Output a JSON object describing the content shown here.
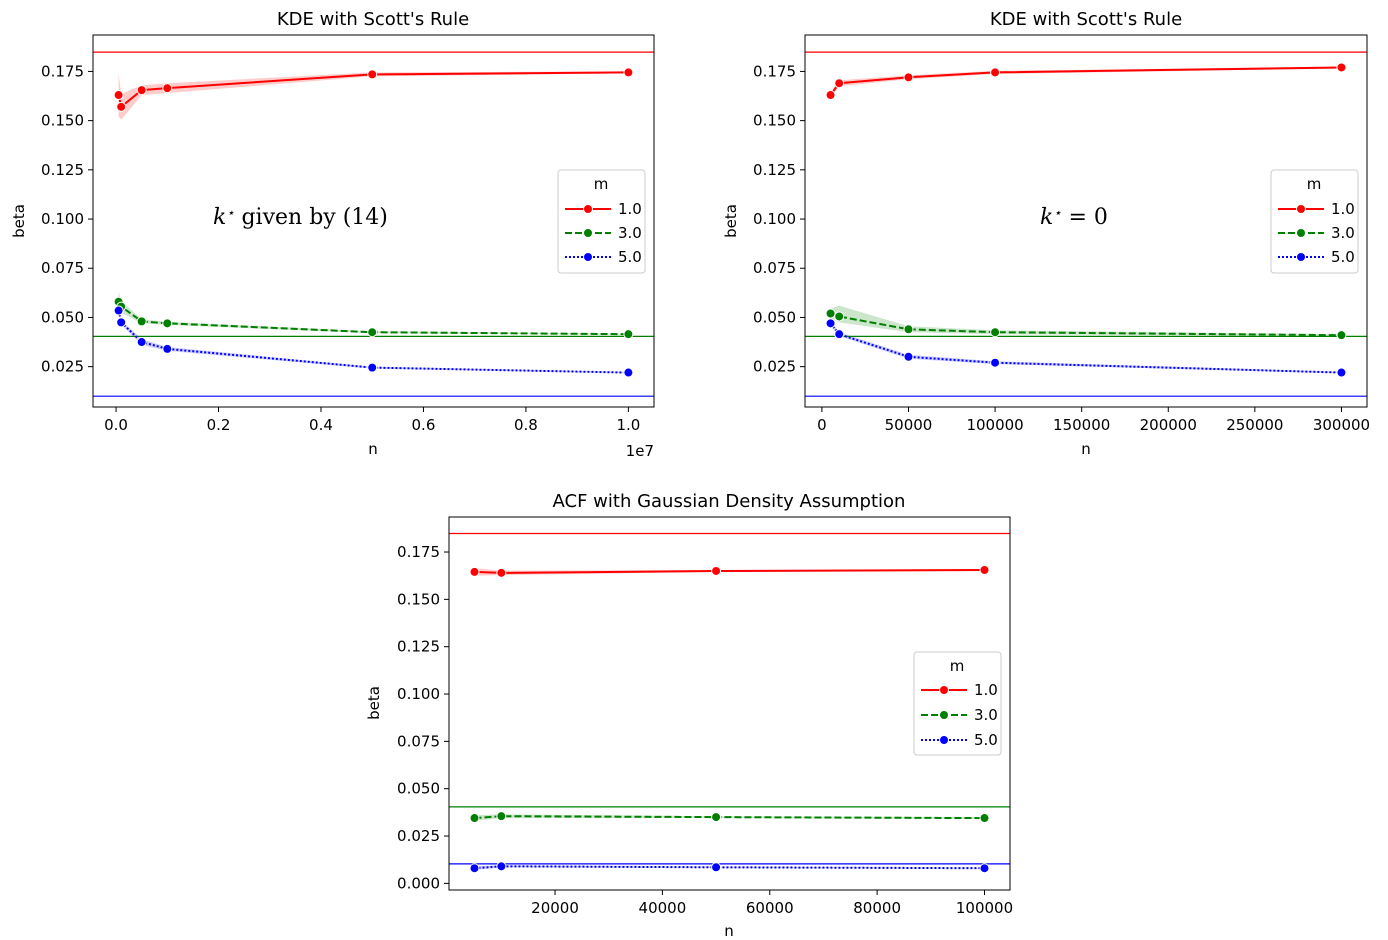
{
  "chart_data": [
    {
      "type": "line",
      "title": "KDE with Scott's Rule",
      "xlabel": "n",
      "ylabel": "beta",
      "x_offset_text": "1e7",
      "x_scale_factor": 10000000,
      "xlim": [
        -450000,
        10500000
      ],
      "ylim": [
        0.0045,
        0.1935
      ],
      "xticks": [
        0,
        2000000,
        4000000,
        6000000,
        8000000,
        10000000
      ],
      "xtick_labels": [
        "0.0",
        "0.2",
        "0.4",
        "0.6",
        "0.8",
        "1.0"
      ],
      "yticks": [
        0.025,
        0.05,
        0.075,
        0.1,
        0.125,
        0.15,
        0.175
      ],
      "ytick_labels": [
        "0.025",
        "0.050",
        "0.075",
        "0.100",
        "0.125",
        "0.150",
        "0.175"
      ],
      "annotation": "k* given by (14)",
      "legend": {
        "title": "m",
        "position": "center-right"
      },
      "hlines": [
        {
          "y": 0.1848,
          "color": "#ff0000"
        },
        {
          "y": 0.0404,
          "color": "#008000"
        },
        {
          "y": 0.01,
          "color": "#0000ff"
        }
      ],
      "series": [
        {
          "name": "1.0",
          "color": "#ff0000",
          "dash": "solid",
          "x": [
            50000,
            100000,
            500000,
            1000000,
            5000000,
            10000000
          ],
          "y": [
            0.163,
            0.157,
            0.1655,
            0.1665,
            0.1735,
            0.1745
          ],
          "ci_low": [
            0.152,
            0.1505,
            0.163,
            0.164,
            0.1725,
            0.174
          ],
          "ci_high": [
            0.174,
            0.1635,
            0.168,
            0.169,
            0.1745,
            0.175
          ]
        },
        {
          "name": "3.0",
          "color": "#008000",
          "dash": "dashed",
          "x": [
            50000,
            100000,
            500000,
            1000000,
            5000000,
            10000000
          ],
          "y": [
            0.058,
            0.0555,
            0.048,
            0.047,
            0.0425,
            0.0415
          ],
          "ci_low": [
            0.053,
            0.0525,
            0.047,
            0.0462,
            0.042,
            0.0412
          ],
          "ci_high": [
            0.063,
            0.0585,
            0.049,
            0.0478,
            0.043,
            0.0418
          ]
        },
        {
          "name": "5.0",
          "color": "#0000ff",
          "dash": "dotted",
          "x": [
            50000,
            100000,
            500000,
            1000000,
            5000000,
            10000000
          ],
          "y": [
            0.0535,
            0.0475,
            0.0375,
            0.034,
            0.0245,
            0.022
          ],
          "ci_low": [
            0.052,
            0.0465,
            0.036,
            0.033,
            0.024,
            0.0217
          ],
          "ci_high": [
            0.055,
            0.0485,
            0.039,
            0.035,
            0.025,
            0.0223
          ]
        }
      ]
    },
    {
      "type": "line",
      "title": "KDE with Scott's Rule",
      "xlabel": "n",
      "ylabel": "beta",
      "xlim": [
        -9750,
        314750
      ],
      "ylim": [
        0.0045,
        0.1935
      ],
      "xticks": [
        0,
        50000,
        100000,
        150000,
        200000,
        250000,
        300000
      ],
      "xtick_labels": [
        "0",
        "50000",
        "100000",
        "150000",
        "200000",
        "250000",
        "300000"
      ],
      "yticks": [
        0.025,
        0.05,
        0.075,
        0.1,
        0.125,
        0.15,
        0.175
      ],
      "ytick_labels": [
        "0.025",
        "0.050",
        "0.075",
        "0.100",
        "0.125",
        "0.150",
        "0.175"
      ],
      "annotation": "k* = 0",
      "legend": {
        "title": "m",
        "position": "center-right"
      },
      "hlines": [
        {
          "y": 0.1848,
          "color": "#ff0000"
        },
        {
          "y": 0.0404,
          "color": "#008000"
        },
        {
          "y": 0.01,
          "color": "#0000ff"
        }
      ],
      "series": [
        {
          "name": "1.0",
          "color": "#ff0000",
          "dash": "solid",
          "x": [
            5000,
            10000,
            50000,
            100000,
            300000
          ],
          "y": [
            0.163,
            0.169,
            0.172,
            0.1745,
            0.177
          ],
          "ci_low": [
            0.1615,
            0.1675,
            0.171,
            0.1737,
            0.1765
          ],
          "ci_high": [
            0.1645,
            0.1705,
            0.173,
            0.1753,
            0.1775
          ]
        },
        {
          "name": "3.0",
          "color": "#008000",
          "dash": "dashed",
          "x": [
            5000,
            10000,
            50000,
            100000,
            300000
          ],
          "y": [
            0.052,
            0.0505,
            0.044,
            0.0425,
            0.041
          ],
          "ci_low": [
            0.0495,
            0.0475,
            0.0425,
            0.0415,
            0.0405
          ],
          "ci_high": [
            0.0545,
            0.056,
            0.0455,
            0.0435,
            0.0415
          ]
        },
        {
          "name": "5.0",
          "color": "#0000ff",
          "dash": "dotted",
          "x": [
            5000,
            10000,
            50000,
            100000,
            300000
          ],
          "y": [
            0.047,
            0.0415,
            0.03,
            0.027,
            0.022
          ],
          "ci_low": [
            0.0455,
            0.0405,
            0.029,
            0.0263,
            0.0216
          ],
          "ci_high": [
            0.0485,
            0.0425,
            0.031,
            0.0277,
            0.0224
          ]
        }
      ]
    },
    {
      "type": "line",
      "title": "ACF with Gaussian Density Assumption",
      "xlabel": "n",
      "ylabel": "beta",
      "xlim": [
        250,
        104750
      ],
      "ylim": [
        -0.0035,
        0.1935
      ],
      "xticks": [
        20000,
        40000,
        60000,
        80000,
        100000
      ],
      "xtick_labels": [
        "20000",
        "40000",
        "60000",
        "80000",
        "100000"
      ],
      "yticks": [
        0,
        0.025,
        0.05,
        0.075,
        0.1,
        0.125,
        0.15,
        0.175
      ],
      "ytick_labels": [
        "0.000",
        "0.025",
        "0.050",
        "0.075",
        "0.100",
        "0.125",
        "0.150",
        "0.175"
      ],
      "legend": {
        "title": "m",
        "position": "center-right"
      },
      "hlines": [
        {
          "y": 0.1848,
          "color": "#ff0000"
        },
        {
          "y": 0.0404,
          "color": "#008000"
        },
        {
          "y": 0.0103,
          "color": "#0000ff"
        }
      ],
      "series": [
        {
          "name": "1.0",
          "color": "#ff0000",
          "dash": "solid",
          "x": [
            5000,
            10000,
            50000,
            100000
          ],
          "y": [
            0.1645,
            0.164,
            0.165,
            0.1655
          ],
          "ci_low": [
            0.1625,
            0.1628,
            0.1645,
            0.165
          ],
          "ci_high": [
            0.1665,
            0.1652,
            0.1655,
            0.166
          ]
        },
        {
          "name": "3.0",
          "color": "#008000",
          "dash": "dashed",
          "x": [
            5000,
            10000,
            50000,
            100000
          ],
          "y": [
            0.0345,
            0.0355,
            0.035,
            0.0345
          ],
          "ci_low": [
            0.033,
            0.0345,
            0.0345,
            0.034
          ],
          "ci_high": [
            0.036,
            0.0365,
            0.0355,
            0.035
          ]
        },
        {
          "name": "5.0",
          "color": "#0000ff",
          "dash": "dotted",
          "x": [
            5000,
            10000,
            50000,
            100000
          ],
          "y": [
            0.008,
            0.009,
            0.0085,
            0.008
          ],
          "ci_low": [
            0.007,
            0.0085,
            0.0082,
            0.0078
          ],
          "ci_high": [
            0.009,
            0.0095,
            0.0088,
            0.0082
          ]
        }
      ]
    }
  ]
}
